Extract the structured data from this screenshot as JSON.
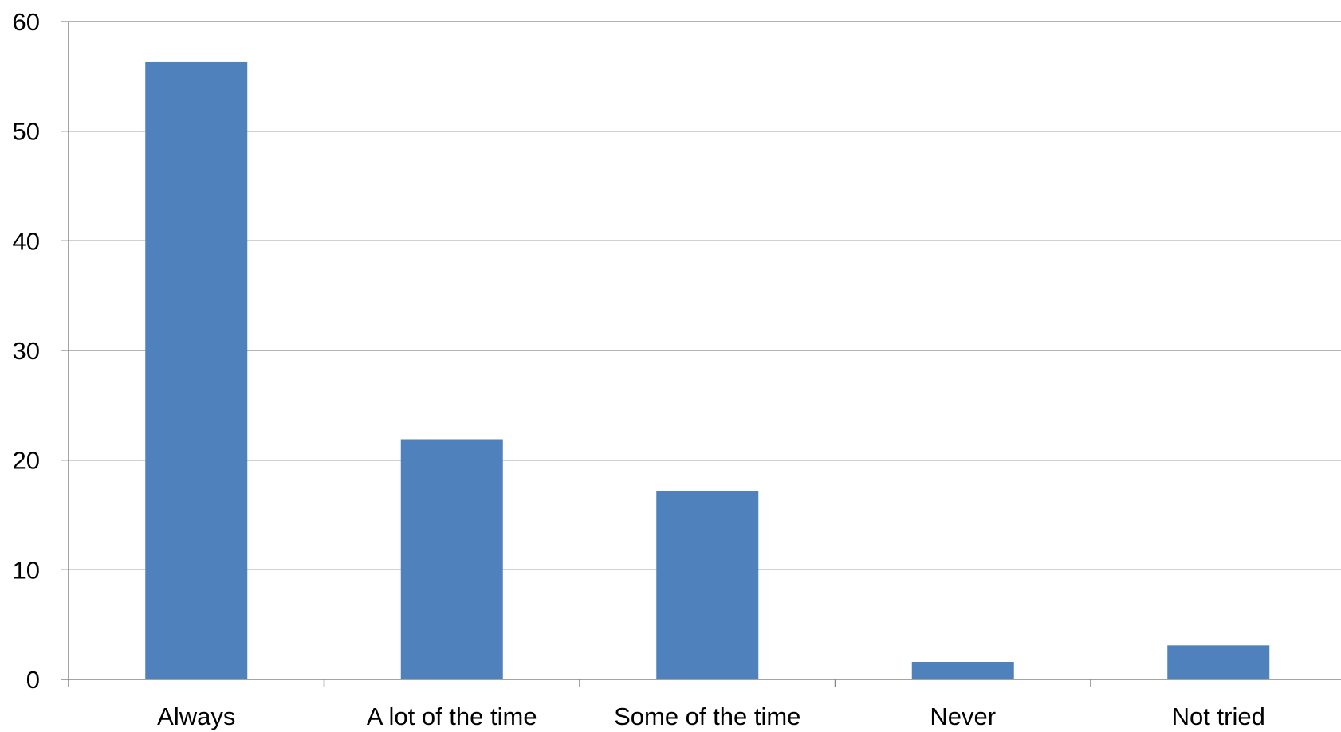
{
  "chart_data": {
    "type": "bar",
    "categories": [
      "Always",
      "A lot of the time",
      "Some of the time",
      "Never",
      "Not tried"
    ],
    "values": [
      56.3,
      21.9,
      17.2,
      1.6,
      3.1
    ],
    "title": "",
    "xlabel": "",
    "ylabel": "",
    "ylim": [
      0,
      60
    ],
    "yticks": [
      0,
      10,
      20,
      30,
      40,
      50,
      60
    ],
    "ytick_labels": [
      "0",
      "10",
      "20",
      "30",
      "40",
      "50",
      "60"
    ],
    "grid": "horizontal",
    "legend": "none",
    "colors": {
      "bar": "#4F81BD",
      "gridline": "#868686",
      "axis": "#868686"
    }
  }
}
